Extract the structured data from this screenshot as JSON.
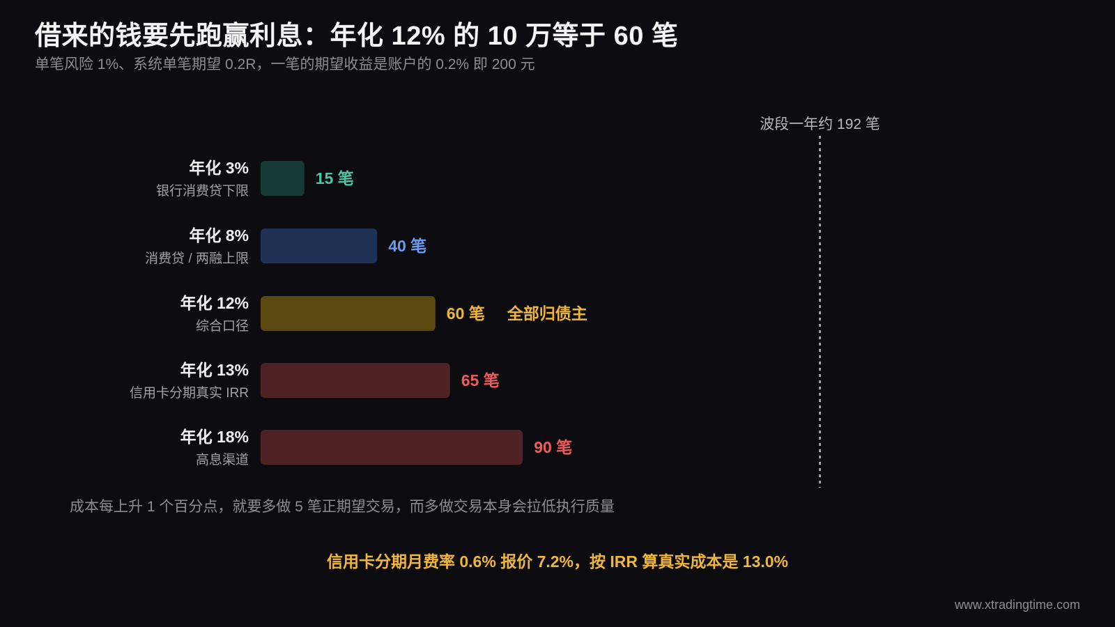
{
  "title": "借来的钱要先跑赢利息：年化 12% 的 10 万等于 60 笔",
  "subtitle": "单笔风险 1%、系统单笔期望 0.2R，一笔的期望收益是账户的 0.2% 即 200 元",
  "note": "成本每上升 1 个百分点，就要多做 5 笔正期望交易，而多做交易本身会拉低执行质量",
  "highlight": "信用卡分期月费率 0.6% 报价 7.2%，按 IRR 算真实成本是 13.0%",
  "watermark": "www.xtradingtime.com",
  "colors": {
    "teal": "#4fc4a6",
    "blue": "#6b9cf0",
    "gold": "#f0b63a",
    "red": "#ef5b5b"
  },
  "chart_data": {
    "type": "bar",
    "orientation": "horizontal",
    "categories": [
      "年化 3%",
      "年化 8%",
      "年化 12%",
      "年化 13%",
      "年化 18%"
    ],
    "sublabels": [
      "银行消费贷下限",
      "消费贷 / 两融上限",
      "综合口径",
      "信用卡分期真实 IRR",
      "高息渠道"
    ],
    "values": [
      15,
      40,
      60,
      65,
      90
    ],
    "value_labels": [
      "15 笔",
      "40 笔",
      "60 笔",
      "65 笔",
      "90 笔"
    ],
    "bar_colors": [
      "#163a35",
      "#1f3256",
      "#5a4810",
      "#4f2224",
      "#4f2224"
    ],
    "label_colors": [
      "#4fc4a6",
      "#6b9cf0",
      "#f0b63a",
      "#ef5b5b",
      "#ef5b5b"
    ],
    "annotations": [
      {
        "category_index": 2,
        "text": "全部归债主",
        "color": "#f0b63a"
      }
    ],
    "reference_line": {
      "value": 192,
      "label": "波段一年约 192 笔",
      "style": "dashed"
    }
  }
}
